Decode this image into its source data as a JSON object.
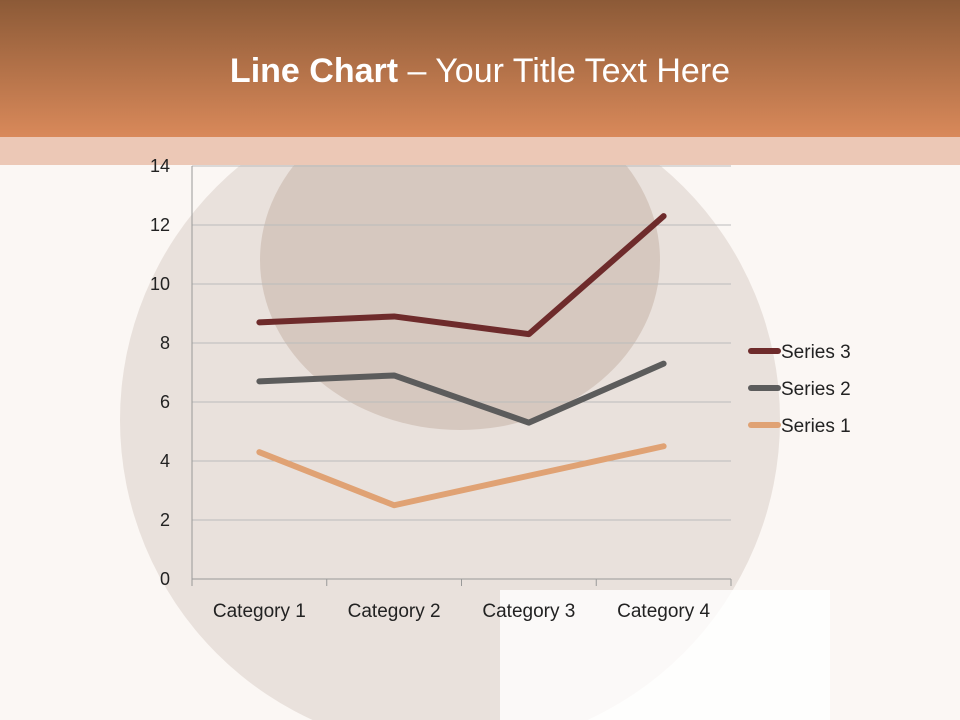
{
  "slide": {
    "title_bold": "Line Chart",
    "title_rest": " – Your Title Text Here"
  },
  "chart_data": {
    "type": "line",
    "title": "",
    "categories": [
      "Category 1",
      "Category 2",
      "Category 3",
      "Category 4"
    ],
    "series": [
      {
        "name": "Series 1",
        "values": [
          4.3,
          2.5,
          3.5,
          4.5
        ],
        "color": "#e0a274"
      },
      {
        "name": "Series 2",
        "values": [
          6.7,
          6.9,
          5.3,
          7.3
        ],
        "color": "#5c5c5c"
      },
      {
        "name": "Series 3",
        "values": [
          8.7,
          8.9,
          8.3,
          12.3
        ],
        "color": "#6e2b2b"
      }
    ],
    "ylim": [
      0,
      14
    ],
    "yticks": [
      "0",
      "2",
      "4",
      "6",
      "8",
      "10",
      "12",
      "14"
    ],
    "grid": true,
    "legend": "right"
  }
}
